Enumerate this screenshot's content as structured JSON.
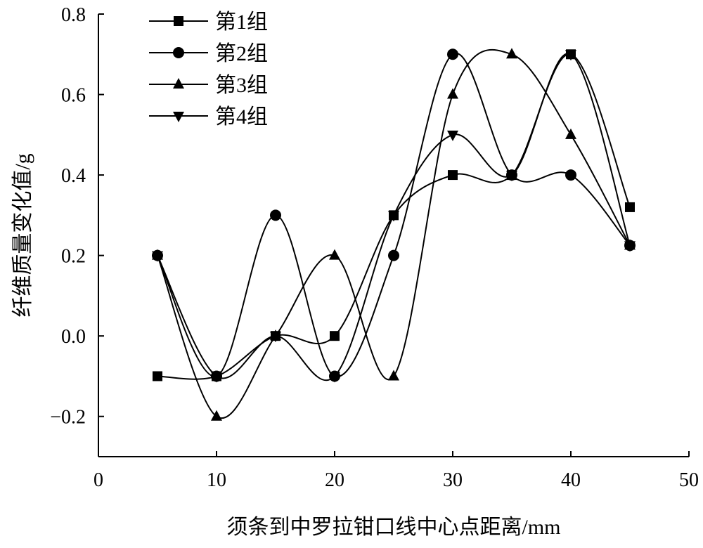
{
  "chart_data": {
    "type": "line",
    "title": "",
    "xlabel": "须条到中罗拉钳口线中心点距离/mm",
    "ylabel": "纤维质量变化值/g",
    "xlim": [
      0,
      50
    ],
    "ylim": [
      -0.3,
      0.8
    ],
    "xticks": [
      0,
      10,
      20,
      30,
      40,
      50
    ],
    "xtick_labels": [
      "0",
      "10",
      "20",
      "30",
      "40",
      "50"
    ],
    "yticks": [
      -0.2,
      0.0,
      0.2,
      0.4,
      0.6,
      0.8
    ],
    "ytick_labels": [
      "−0.2",
      "0.0",
      "0.2",
      "0.4",
      "0.6",
      "0.8"
    ],
    "grid": false,
    "legend_position": "top-left",
    "smooth": true,
    "x": [
      5,
      10,
      15,
      20,
      25,
      30,
      35,
      40,
      45
    ],
    "series": [
      {
        "name": "第1组",
        "marker": "square",
        "values": [
          -0.1,
          -0.1,
          0.0,
          0.0,
          0.3,
          0.4,
          0.4,
          0.7,
          0.32
        ]
      },
      {
        "name": "第2组",
        "marker": "circle",
        "values": [
          0.2,
          -0.1,
          0.3,
          -0.1,
          0.2,
          0.7,
          0.4,
          0.4,
          0.225
        ]
      },
      {
        "name": "第3组",
        "marker": "triangle-up",
        "values": [
          0.2,
          -0.2,
          0.0,
          0.2,
          -0.1,
          0.6,
          0.7,
          0.5,
          0.225
        ]
      },
      {
        "name": "第4组",
        "marker": "triangle-down",
        "values": [
          0.2,
          -0.1,
          0.0,
          -0.1,
          0.3,
          0.5,
          0.4,
          0.7,
          0.225
        ]
      }
    ],
    "color": "#000000"
  }
}
